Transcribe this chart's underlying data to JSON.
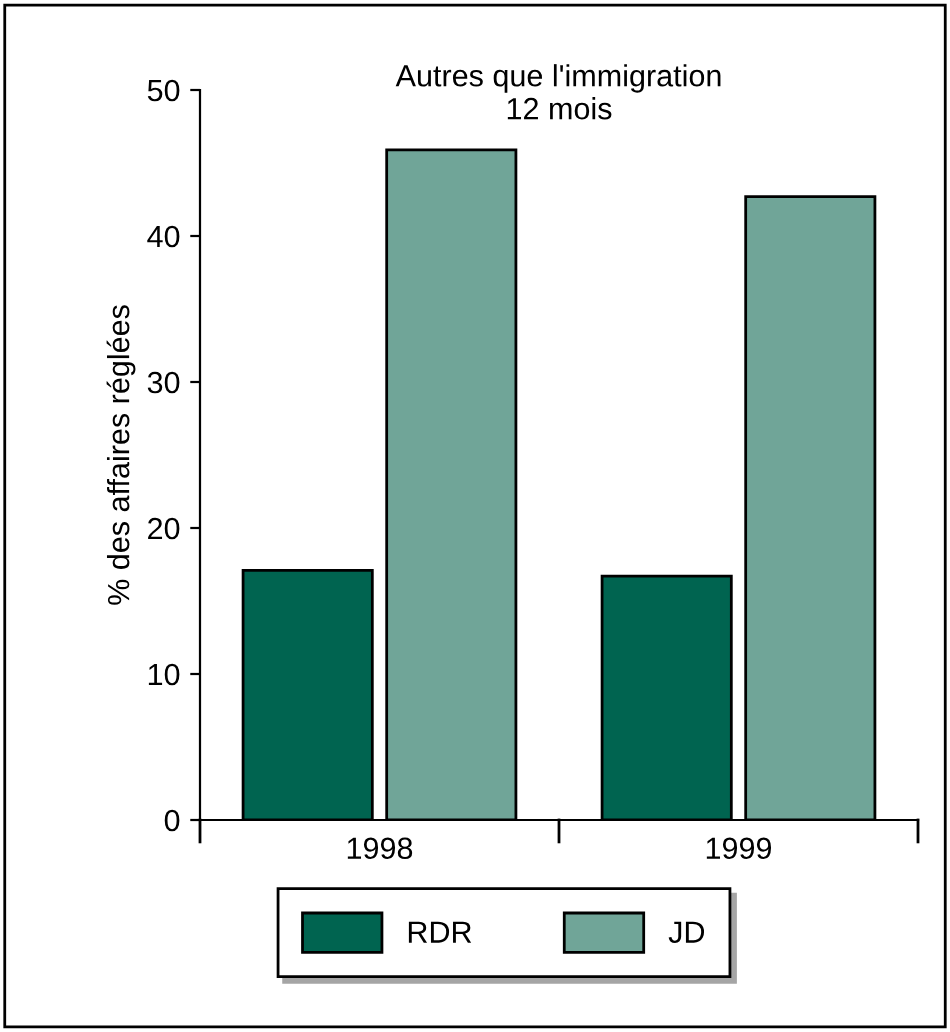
{
  "chart_data": {
    "type": "bar",
    "title": "Autres que l'immigration\n12 mois",
    "ylabel": "% des affaires réglées",
    "categories": [
      "1998",
      "1999"
    ],
    "series": [
      {
        "name": "RDR",
        "color": "#006450",
        "values": [
          17.1,
          16.7
        ]
      },
      {
        "name": "JD",
        "color": "#70a598",
        "values": [
          45.9,
          42.7
        ]
      }
    ],
    "ylim": [
      0,
      50
    ],
    "yticks": [
      0,
      10,
      20,
      30,
      40,
      50
    ],
    "grid": false,
    "legend": "bottom"
  }
}
